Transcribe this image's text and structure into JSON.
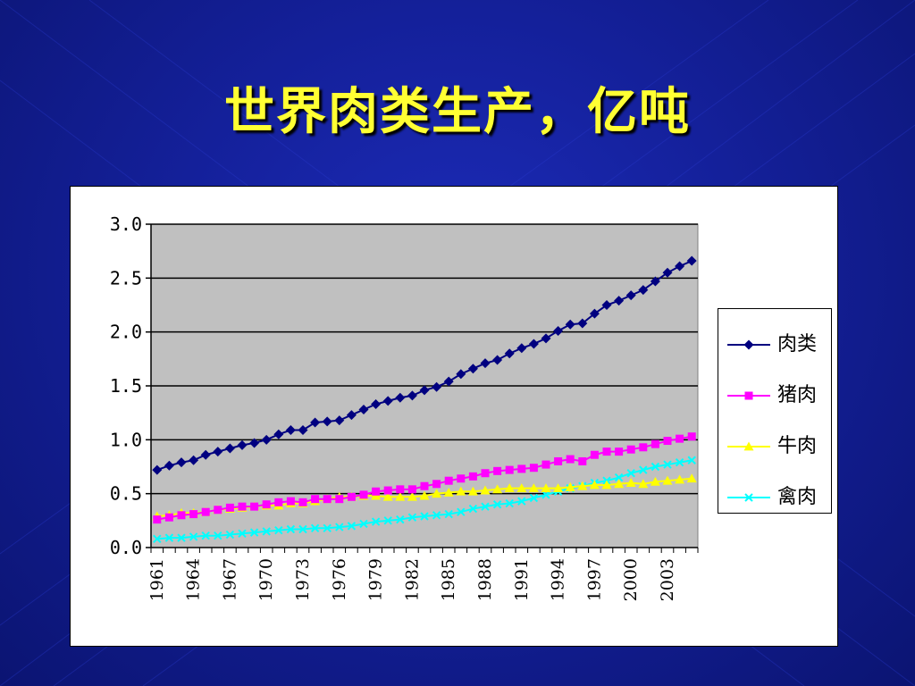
{
  "slide": {
    "title": "世界肉类生产，亿吨"
  },
  "colors": {
    "background": "#14209a",
    "title": "#ffff33",
    "plot_area": "#c0c0c0"
  },
  "chart_data": {
    "type": "line",
    "title": "",
    "xlabel": "",
    "ylabel": "",
    "ylim": [
      0,
      3.0
    ],
    "yticks": [
      "3.0",
      "2.5",
      "2.0",
      "1.5",
      "1.0",
      "0.5",
      "0.0"
    ],
    "ytick_values": [
      3.0,
      2.5,
      2.0,
      1.5,
      1.0,
      0.5,
      0.0
    ],
    "xtick_labels": [
      "1961",
      "1964",
      "1967",
      "1970",
      "1973",
      "1976",
      "1979",
      "1982",
      "1985",
      "1988",
      "1991",
      "1994",
      "1997",
      "2000",
      "2003"
    ],
    "x_start": 1961,
    "x_end": 2005,
    "grid": true,
    "legend_position": "right",
    "series": [
      {
        "name": "肉类",
        "color": "#000080",
        "marker": "diamond",
        "values": [
          0.72,
          0.76,
          0.79,
          0.81,
          0.86,
          0.89,
          0.92,
          0.95,
          0.97,
          1.0,
          1.05,
          1.09,
          1.09,
          1.16,
          1.17,
          1.18,
          1.23,
          1.28,
          1.33,
          1.36,
          1.39,
          1.41,
          1.46,
          1.49,
          1.54,
          1.61,
          1.66,
          1.71,
          1.74,
          1.8,
          1.85,
          1.89,
          1.94,
          2.01,
          2.07,
          2.08,
          2.17,
          2.25,
          2.29,
          2.34,
          2.39,
          2.47,
          2.55,
          2.61,
          2.66
        ]
      },
      {
        "name": "猪肉",
        "color": "#ff00ff",
        "marker": "square",
        "values": [
          0.26,
          0.28,
          0.3,
          0.31,
          0.33,
          0.35,
          0.37,
          0.38,
          0.38,
          0.4,
          0.42,
          0.43,
          0.42,
          0.45,
          0.45,
          0.45,
          0.47,
          0.49,
          0.52,
          0.53,
          0.54,
          0.54,
          0.57,
          0.59,
          0.62,
          0.64,
          0.66,
          0.69,
          0.71,
          0.72,
          0.73,
          0.74,
          0.77,
          0.8,
          0.82,
          0.8,
          0.86,
          0.89,
          0.89,
          0.91,
          0.93,
          0.96,
          0.99,
          1.01,
          1.03
        ]
      },
      {
        "name": "牛肉",
        "color": "#ffff00",
        "marker": "triangle",
        "values": [
          0.29,
          0.3,
          0.32,
          0.32,
          0.33,
          0.35,
          0.36,
          0.37,
          0.38,
          0.39,
          0.39,
          0.41,
          0.41,
          0.43,
          0.45,
          0.47,
          0.47,
          0.48,
          0.48,
          0.47,
          0.47,
          0.47,
          0.48,
          0.5,
          0.51,
          0.52,
          0.52,
          0.53,
          0.54,
          0.55,
          0.55,
          0.55,
          0.55,
          0.55,
          0.56,
          0.57,
          0.58,
          0.58,
          0.59,
          0.6,
          0.59,
          0.61,
          0.62,
          0.63,
          0.64
        ]
      },
      {
        "name": "禽肉",
        "color": "#00ffff",
        "marker": "cross",
        "values": [
          0.08,
          0.09,
          0.09,
          0.1,
          0.11,
          0.11,
          0.12,
          0.13,
          0.14,
          0.15,
          0.16,
          0.17,
          0.17,
          0.18,
          0.18,
          0.19,
          0.2,
          0.22,
          0.24,
          0.25,
          0.26,
          0.28,
          0.29,
          0.3,
          0.31,
          0.33,
          0.36,
          0.38,
          0.4,
          0.41,
          0.43,
          0.46,
          0.49,
          0.52,
          0.55,
          0.57,
          0.6,
          0.62,
          0.65,
          0.69,
          0.72,
          0.75,
          0.77,
          0.79,
          0.81
        ]
      }
    ]
  }
}
